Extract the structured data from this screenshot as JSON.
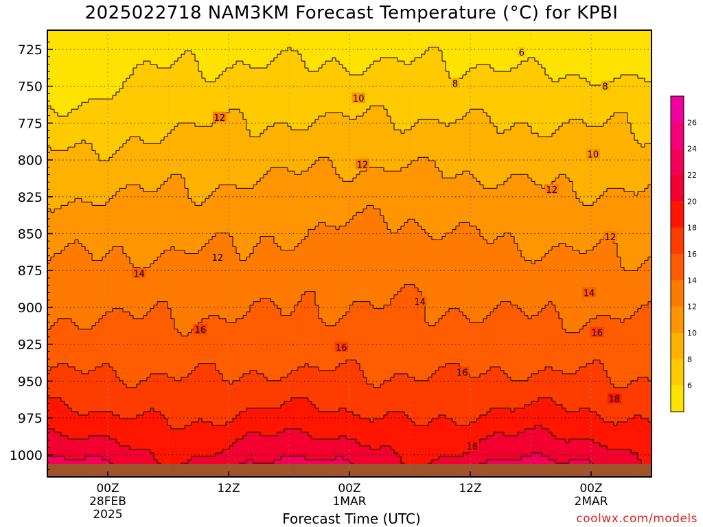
{
  "title": "2025022718 NAM3KM Forecast Temperature (°C) for KPBI",
  "chart_data": {
    "type": "heatmap",
    "title": "2025022718 NAM3KM Forecast Temperature (°C) for KPBI",
    "xlabel": "Forecast Time (UTC)",
    "ylabel": "",
    "y_axis": "pressure (hPa), inverted",
    "ylim": [
      1015,
      712
    ],
    "y_ticks": [
      725,
      750,
      775,
      800,
      825,
      850,
      875,
      900,
      925,
      950,
      975,
      1000
    ],
    "x_ticks": [
      {
        "lines": [
          "00Z",
          "28FEB",
          "2025"
        ]
      },
      {
        "lines": [
          "12Z"
        ]
      },
      {
        "lines": [
          "00Z",
          "1MAR"
        ]
      },
      {
        "lines": [
          "12Z"
        ]
      },
      {
        "lines": [
          "00Z",
          "2MAR"
        ]
      }
    ],
    "x_hours_from_start": [
      6,
      18,
      30,
      42,
      54
    ],
    "x_range_hours": [
      0,
      60
    ],
    "contour_levels": [
      6,
      8,
      10,
      12,
      14,
      16,
      18,
      20,
      22,
      24,
      26
    ],
    "contour_labels": [
      {
        "value": "6",
        "hour": 47.1,
        "p": 727
      },
      {
        "value": "8",
        "hour": 40.5,
        "p": 748
      },
      {
        "value": "8",
        "hour": 55.4,
        "p": 750
      },
      {
        "value": "10",
        "hour": 30.9,
        "p": 758
      },
      {
        "value": "10",
        "hour": 54.2,
        "p": 796
      },
      {
        "value": "12",
        "hour": 17.1,
        "p": 771
      },
      {
        "value": "12",
        "hour": 31.3,
        "p": 803
      },
      {
        "value": "12",
        "hour": 50.1,
        "p": 820
      },
      {
        "value": "12",
        "hour": 16.9,
        "p": 866
      },
      {
        "value": "12",
        "hour": 55.9,
        "p": 852
      },
      {
        "value": "14",
        "hour": 9.1,
        "p": 877
      },
      {
        "value": "14",
        "hour": 37.0,
        "p": 896
      },
      {
        "value": "14",
        "hour": 53.8,
        "p": 890
      },
      {
        "value": "16",
        "hour": 15.2,
        "p": 915
      },
      {
        "value": "16",
        "hour": 29.2,
        "p": 927
      },
      {
        "value": "16",
        "hour": 41.2,
        "p": 944
      },
      {
        "value": "16",
        "hour": 54.6,
        "p": 917
      },
      {
        "value": "18",
        "hour": 42.2,
        "p": 994
      },
      {
        "value": "18",
        "hour": 56.3,
        "p": 962
      }
    ],
    "colorbar": {
      "ticks": [
        6,
        8,
        10,
        12,
        14,
        16,
        18,
        20,
        22,
        24,
        26
      ],
      "bins": [
        {
          "min": null,
          "max": 6,
          "color": "#ffe300"
        },
        {
          "min": 6,
          "max": 8,
          "color": "#ffcb00"
        },
        {
          "min": 8,
          "max": 10,
          "color": "#ffb100"
        },
        {
          "min": 10,
          "max": 12,
          "color": "#ff9500"
        },
        {
          "min": 12,
          "max": 14,
          "color": "#ff7a00"
        },
        {
          "min": 14,
          "max": 16,
          "color": "#ff5d00"
        },
        {
          "min": 16,
          "max": 18,
          "color": "#ff3c00"
        },
        {
          "min": 18,
          "max": 20,
          "color": "#ff1500"
        },
        {
          "min": 20,
          "max": 22,
          "color": "#f40030"
        },
        {
          "min": 22,
          "max": 24,
          "color": "#f40058"
        },
        {
          "min": 24,
          "max": 26,
          "color": "#f40078"
        },
        {
          "min": 26,
          "max": null,
          "color": "#f1009e"
        }
      ]
    },
    "grid": true,
    "ground_color": "#a0522d"
  },
  "footer": {
    "xlabel": "Forecast Time (UTC)",
    "credit": "coolwx.com/models"
  }
}
